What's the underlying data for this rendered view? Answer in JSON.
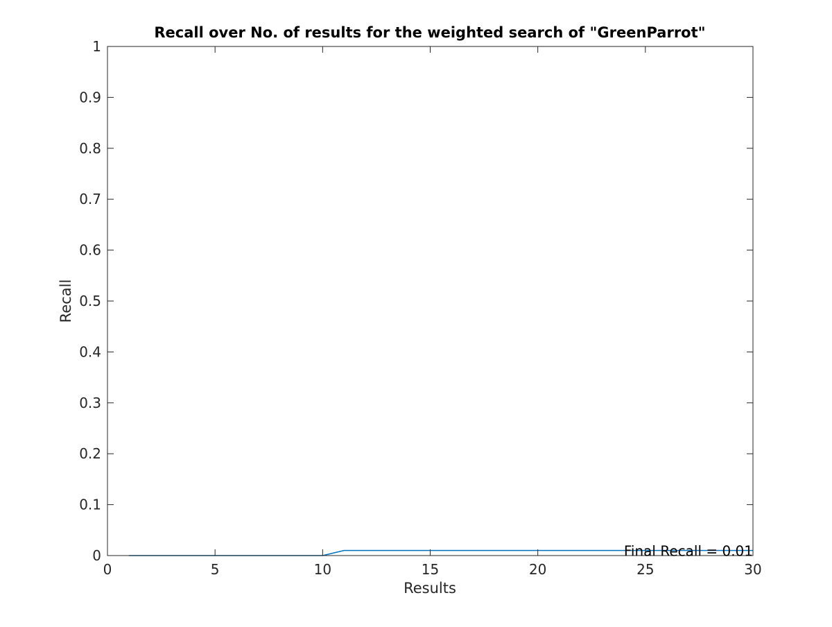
{
  "chart_data": {
    "type": "line",
    "title": "Recall over No. of results for the weighted search of \"GreenParrot\"",
    "xlabel": "Results",
    "ylabel": "Recall",
    "xlim": [
      0,
      30
    ],
    "ylim": [
      0,
      1
    ],
    "xticks": [
      0,
      5,
      10,
      15,
      20,
      25,
      30
    ],
    "xtick_labels": [
      "0",
      "5",
      "10",
      "15",
      "20",
      "25",
      "30"
    ],
    "yticks": [
      0,
      0.1,
      0.2,
      0.3,
      0.4,
      0.5,
      0.6,
      0.7,
      0.8,
      0.9,
      1
    ],
    "ytick_labels": [
      "0",
      "0.1",
      "0.2",
      "0.3",
      "0.4",
      "0.5",
      "0.6",
      "0.7",
      "0.8",
      "0.9",
      "1"
    ],
    "grid": false,
    "series": [
      {
        "color": "#0072BD",
        "x": [
          1,
          2,
          3,
          4,
          5,
          6,
          7,
          8,
          9,
          10,
          11,
          12,
          13,
          14,
          15,
          16,
          17,
          18,
          19,
          20,
          21,
          22,
          23,
          24,
          25,
          26,
          27,
          28,
          29,
          30
        ],
        "y": [
          0,
          0,
          0,
          0,
          0,
          0,
          0,
          0,
          0,
          0,
          0.01,
          0.01,
          0.01,
          0.01,
          0.01,
          0.01,
          0.01,
          0.01,
          0.01,
          0.01,
          0.01,
          0.01,
          0.01,
          0.01,
          0.01,
          0.01,
          0.01,
          0.01,
          0.01,
          0.01
        ]
      }
    ],
    "annotations": [
      {
        "text": "Final Recall = 0.01",
        "x": 30,
        "y": 0.01
      }
    ]
  }
}
